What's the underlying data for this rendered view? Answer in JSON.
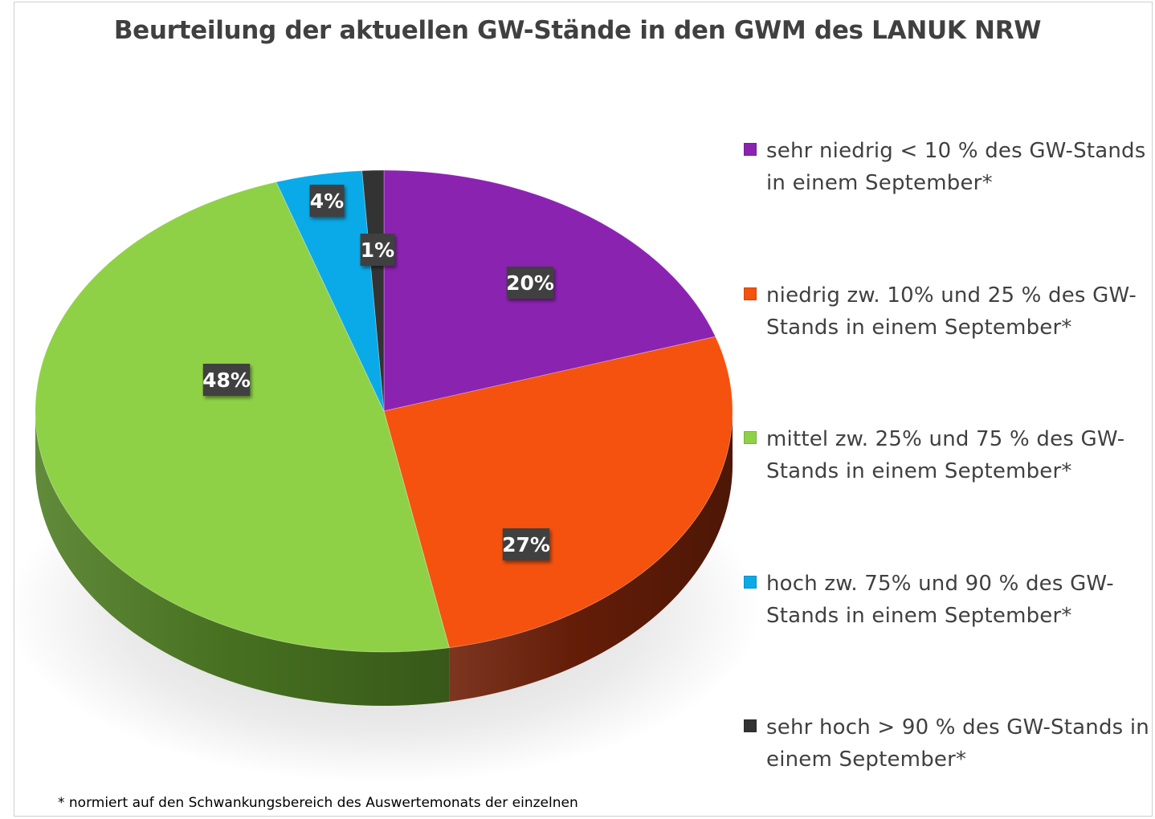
{
  "chart_data": {
    "type": "pie",
    "title": "Beurteilung der aktuellen GW-Stände in den GWM des LANUK NRW",
    "slices": [
      {
        "name": "sehr niedrig < 10 % des GW-Stands in einem September*",
        "value": 20,
        "label": "20%",
        "color": "#8B23B1",
        "side_color": "#4f1466"
      },
      {
        "name": "niedrig zw. 10% und 25 % des GW-Stands in einem September*",
        "value": 27,
        "label": "27%",
        "color": "#F4520E",
        "side_color": "#6e2008"
      },
      {
        "name": "mittel zw. 25% und 75 % des GW-Stands in einem September*",
        "value": 48,
        "label": "48%",
        "color": "#8FD146",
        "side_color": "#4f7e24"
      },
      {
        "name": "hoch zw. 75% und 90 % des GW-Stands in einem September*",
        "value": 4,
        "label": "4%",
        "color": "#0AAAE8",
        "side_color": "#076c94"
      },
      {
        "name": "sehr hoch > 90 % des GW-Stands in einem September*",
        "value": 1,
        "label": "1%",
        "color": "#333333",
        "side_color": "#1c1c1c"
      }
    ],
    "legend_position": "right"
  },
  "legend": {
    "items": [
      {
        "text": "sehr niedrig < 10 % des GW-Stands in einem September*",
        "color": "#8B23B1"
      },
      {
        "text": "niedrig zw. 10% und 25 % des GW-Stands in einem September*",
        "color": "#F4520E"
      },
      {
        "text": "mittel zw. 25% und 75 % des GW-Stands in einem September*",
        "color": "#8FD146"
      },
      {
        "text": "hoch zw. 75% und 90 % des GW-Stands in einem September*",
        "color": "#0AAAE8"
      },
      {
        "text": "sehr hoch > 90 % des GW-Stands in einem September*",
        "color": "#333333"
      }
    ]
  },
  "footnote": "* normiert auf den Schwankungsbereich des Auswertemonats der einzelnen"
}
